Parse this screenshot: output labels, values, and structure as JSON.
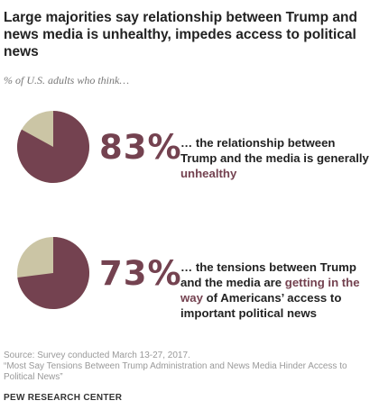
{
  "title": "Large majorities say relationship between Trump and news media is unhealthy, impedes access to political news",
  "subtitle": "% of U.S. adults who think…",
  "colors": {
    "primary": "#744250",
    "secondary": "#cbc5a5"
  },
  "items": [
    {
      "pct_label": "83%",
      "desc_before": "… the relationship between Trump and the media is generally ",
      "desc_highlight": "unhealthy",
      "desc_after": ""
    },
    {
      "pct_label": "73%",
      "desc_before": "… the tensions between Trump and the media are ",
      "desc_highlight": "getting in the way",
      "desc_after": " of Americans’ access to important political news"
    }
  ],
  "chart_data": [
    {
      "type": "pie",
      "values": [
        83,
        17
      ]
    },
    {
      "type": "pie",
      "values": [
        73,
        27
      ]
    }
  ],
  "source": {
    "line1": "Source: Survey conducted March 13-27, 2017.",
    "line2": "“Most Say Tensions Between Trump Administration and News Media Hinder Access to Political News”"
  },
  "brand": "PEW RESEARCH CENTER"
}
